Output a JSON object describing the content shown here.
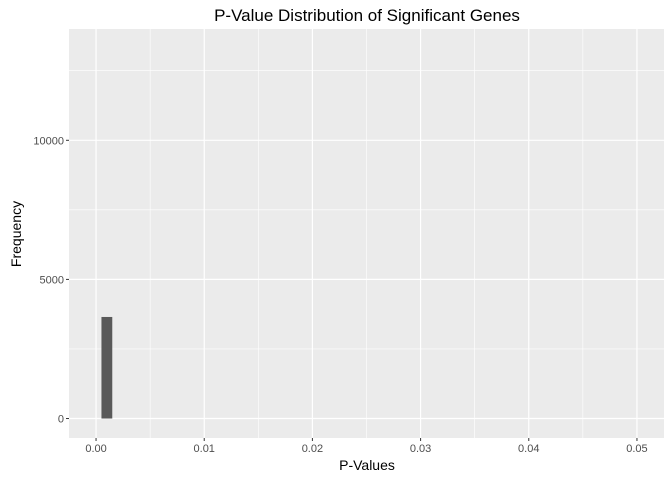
{
  "chart_data": {
    "type": "bar",
    "subtype": "histogram",
    "title": "P-Value Distribution of Significant Genes",
    "xlabel": "P-Values",
    "ylabel": "Frequency",
    "xlim": [
      -0.0025,
      0.0525
    ],
    "ylim": [
      -700,
      14000
    ],
    "x_ticks": [
      0.0,
      0.01,
      0.02,
      0.03,
      0.04,
      0.05
    ],
    "x_tick_labels": [
      "0.00",
      "0.01",
      "0.02",
      "0.03",
      "0.04",
      "0.05"
    ],
    "y_ticks": [
      0,
      5000,
      10000
    ],
    "y_tick_labels": [
      "0",
      "5000",
      "10000"
    ],
    "bin_width": 0.001,
    "bins": [
      {
        "start": 0.0005,
        "end": 0.0015,
        "count": 3650
      }
    ],
    "grid": true,
    "legend": "none",
    "colors": {
      "bar": "#595959",
      "panel": "#ebebeb",
      "grid": "#ffffff"
    }
  }
}
